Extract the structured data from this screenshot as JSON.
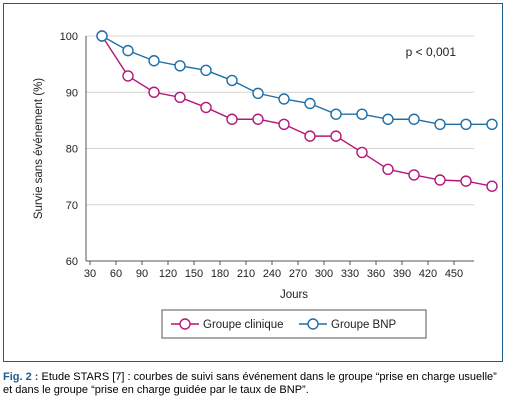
{
  "chart_data": {
    "type": "line",
    "title": "",
    "xlabel": "Jours",
    "ylabel": "Survie sans événement (%)",
    "ylim": [
      60,
      100
    ],
    "yticks": [
      60,
      70,
      80,
      90,
      100
    ],
    "x": [
      30,
      60,
      90,
      120,
      150,
      180,
      210,
      240,
      270,
      300,
      330,
      360,
      390,
      420,
      450,
      480
    ],
    "xtick_labels": [
      "30",
      "60",
      "90",
      "120",
      "150",
      "180",
      "210",
      "240",
      "270",
      "300",
      "330",
      "360",
      "390",
      "420",
      "450"
    ],
    "annotation": "p < 0,001",
    "grid": "horizontal",
    "legend_position": "bottom",
    "series": [
      {
        "name": "Groupe clinique",
        "color": "#b5177a",
        "values": [
          100,
          92.9,
          90.0,
          89.1,
          87.3,
          85.2,
          85.2,
          84.3,
          82.2,
          82.2,
          79.3,
          76.3,
          75.3,
          74.4,
          74.2,
          73.3
        ]
      },
      {
        "name": "Groupe BNP",
        "color": "#1f6fa6",
        "values": [
          100,
          97.4,
          95.6,
          94.7,
          93.9,
          92.1,
          89.8,
          88.8,
          88.0,
          86.1,
          86.1,
          85.2,
          85.2,
          84.3,
          84.3,
          84.3
        ]
      }
    ]
  },
  "caption": {
    "label": "Fig. 2 :",
    "text": " Etude STARS [7] : courbes de suivi sans événement dans le groupe “prise en charge usuelle” et dans le groupe “prise en charge guidée par le taux de BNP”."
  }
}
